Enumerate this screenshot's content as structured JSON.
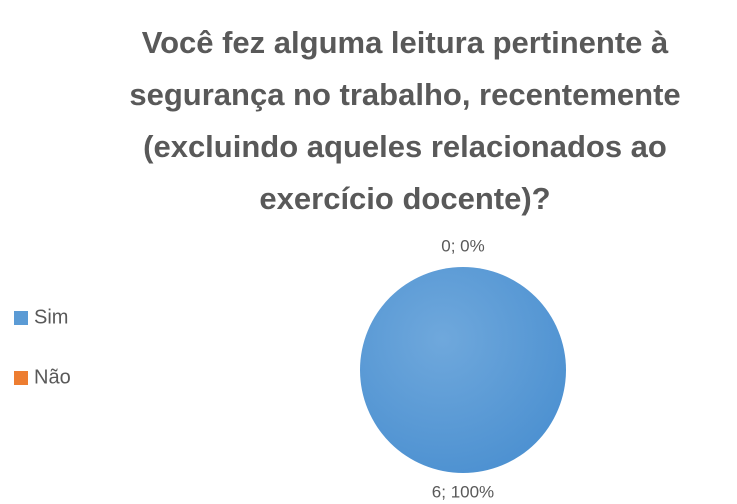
{
  "chart_data": {
    "type": "pie",
    "title": [
      "Você fez alguma leitura pertinente à",
      "segurança no trabalho, recentemente",
      "(excluindo aqueles relacionados ao",
      "exercício docente)?"
    ],
    "categories": [
      "Sim",
      "Não"
    ],
    "values": [
      6,
      0
    ],
    "value_labels": [
      "6; 100%",
      "0; 0%"
    ],
    "colors": [
      "#5b9bd5",
      "#ed7d31"
    ],
    "legend": "left"
  }
}
